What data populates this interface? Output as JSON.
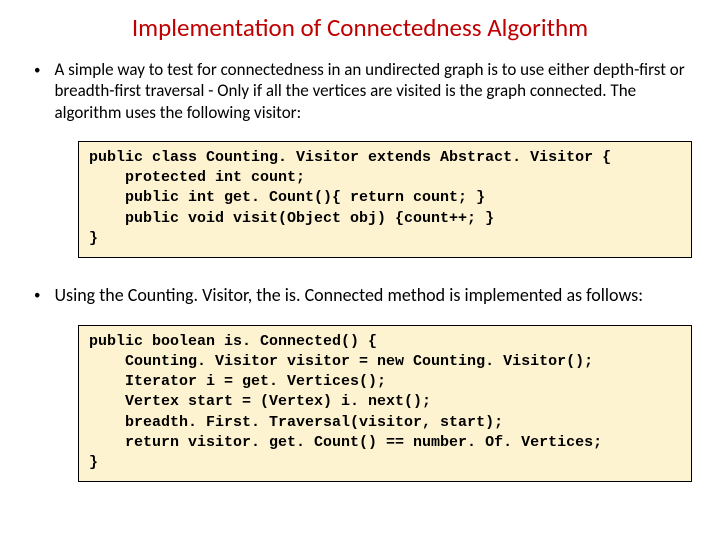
{
  "title": "Implementation of Connectedness Algorithm",
  "bullets": [
    "A simple way to test for connectedness in an undirected graph is to use either depth-first or breadth-first traversal - Only if all the vertices are visited is the graph connected. The algorithm uses the following visitor:",
    "Using the Counting. Visitor, the is. Connected method is implemented as follows:"
  ],
  "code1": "public class Counting. Visitor extends Abstract. Visitor {\n    protected int count;\n    public int get. Count(){ return count; }\n    public void visit(Object obj) {count++; }\n}",
  "code2": "public boolean is. Connected() {\n    Counting. Visitor visitor = new Counting. Visitor();\n    Iterator i = get. Vertices();\n    Vertex start = (Vertex) i. next();\n    breadth. First. Traversal(visitor, start);\n    return visitor. get. Count() == number. Of. Vertices;\n}",
  "colors": {
    "title": "#c00000",
    "code_bg": "#fef3d1",
    "code_border": "#000000",
    "text": "#000000",
    "background": "#ffffff"
  }
}
